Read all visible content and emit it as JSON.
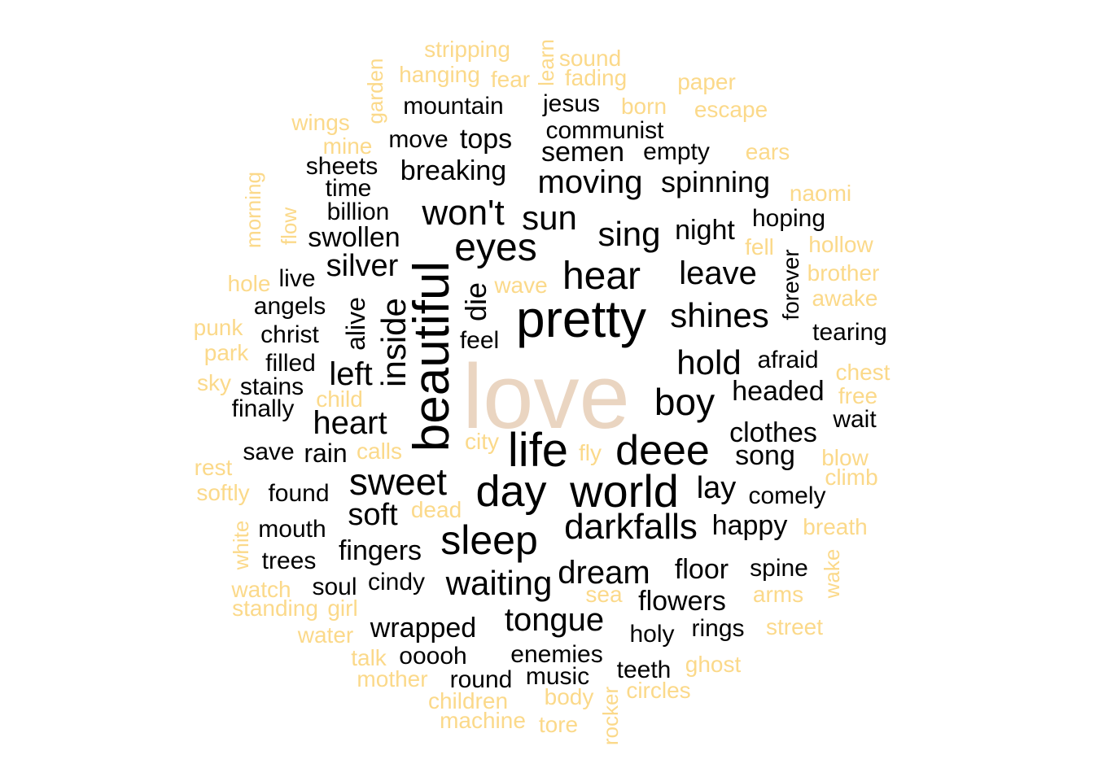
{
  "colors": {
    "hero": "#ead5c1",
    "dark": "#000000",
    "light": "#fbd98a"
  },
  "words": [
    {
      "t": "love",
      "c": "hero"
    },
    {
      "t": "pretty",
      "c": "dark"
    },
    {
      "t": "beautiful",
      "c": "dark"
    },
    {
      "t": "life",
      "c": "dark"
    },
    {
      "t": "world",
      "c": "dark"
    },
    {
      "t": "day",
      "c": "dark"
    },
    {
      "t": "deee",
      "c": "dark"
    },
    {
      "t": "sleep",
      "c": "dark"
    },
    {
      "t": "hear",
      "c": "dark"
    },
    {
      "t": "eyes",
      "c": "dark"
    },
    {
      "t": "boy",
      "c": "dark"
    },
    {
      "t": "sweet",
      "c": "dark"
    },
    {
      "t": "darkfalls",
      "c": "dark"
    },
    {
      "t": "won't",
      "c": "dark"
    },
    {
      "t": "inside",
      "c": "dark"
    },
    {
      "t": "shines",
      "c": "dark"
    },
    {
      "t": "sun",
      "c": "dark"
    },
    {
      "t": "sing",
      "c": "dark"
    },
    {
      "t": "hold",
      "c": "dark"
    },
    {
      "t": "waiting",
      "c": "dark"
    },
    {
      "t": "moving",
      "c": "dark"
    },
    {
      "t": "leave",
      "c": "dark"
    },
    {
      "t": "heart",
      "c": "dark"
    },
    {
      "t": "silver",
      "c": "dark"
    },
    {
      "t": "left",
      "c": "dark"
    },
    {
      "t": "soft",
      "c": "dark"
    },
    {
      "t": "tongue",
      "c": "dark"
    },
    {
      "t": "dream",
      "c": "dark"
    },
    {
      "t": "lay",
      "c": "dark"
    },
    {
      "t": "die",
      "c": "dark"
    },
    {
      "t": "alive",
      "c": "dark"
    },
    {
      "t": "spinning",
      "c": "dark"
    },
    {
      "t": "breaking",
      "c": "dark"
    },
    {
      "t": "swollen",
      "c": "dark"
    },
    {
      "t": "night",
      "c": "dark"
    },
    {
      "t": "clothes",
      "c": "dark"
    },
    {
      "t": "headed",
      "c": "dark"
    },
    {
      "t": "fingers",
      "c": "dark"
    },
    {
      "t": "wrapped",
      "c": "dark"
    },
    {
      "t": "happy",
      "c": "dark"
    },
    {
      "t": "song",
      "c": "dark"
    },
    {
      "t": "floor",
      "c": "dark"
    },
    {
      "t": "flowers",
      "c": "dark"
    },
    {
      "t": "tops",
      "c": "dark"
    },
    {
      "t": "semen",
      "c": "dark"
    },
    {
      "t": "mountain",
      "c": "dark"
    },
    {
      "t": "rain",
      "c": "dark"
    },
    {
      "t": "forever",
      "c": "dark"
    },
    {
      "t": "hoping",
      "c": "dark"
    },
    {
      "t": "afraid",
      "c": "dark"
    },
    {
      "t": "tearing",
      "c": "dark"
    },
    {
      "t": "comely",
      "c": "dark"
    },
    {
      "t": "spine",
      "c": "dark"
    },
    {
      "t": "enemies",
      "c": "dark"
    },
    {
      "t": "communist",
      "c": "dark"
    },
    {
      "t": "jesus",
      "c": "dark"
    },
    {
      "t": "empty",
      "c": "dark"
    },
    {
      "t": "move",
      "c": "dark"
    },
    {
      "t": "sheets",
      "c": "dark"
    },
    {
      "t": "time",
      "c": "dark"
    },
    {
      "t": "billion",
      "c": "dark"
    },
    {
      "t": "angels",
      "c": "dark"
    },
    {
      "t": "christ",
      "c": "dark"
    },
    {
      "t": "filled",
      "c": "dark"
    },
    {
      "t": "stains",
      "c": "dark"
    },
    {
      "t": "finally",
      "c": "dark"
    },
    {
      "t": "save",
      "c": "dark"
    },
    {
      "t": "found",
      "c": "dark"
    },
    {
      "t": "mouth",
      "c": "dark"
    },
    {
      "t": "trees",
      "c": "dark"
    },
    {
      "t": "soul",
      "c": "dark"
    },
    {
      "t": "cindy",
      "c": "dark"
    },
    {
      "t": "ooooh",
      "c": "dark"
    },
    {
      "t": "round",
      "c": "dark"
    },
    {
      "t": "music",
      "c": "dark"
    },
    {
      "t": "teeth",
      "c": "dark"
    },
    {
      "t": "holy",
      "c": "dark"
    },
    {
      "t": "rings",
      "c": "dark"
    },
    {
      "t": "wait",
      "c": "dark"
    },
    {
      "t": "feel",
      "c": "dark"
    },
    {
      "t": "live",
      "c": "dark"
    },
    {
      "t": "stripping",
      "c": "light"
    },
    {
      "t": "learn",
      "c": "light"
    },
    {
      "t": "sound",
      "c": "light"
    },
    {
      "t": "hanging",
      "c": "light"
    },
    {
      "t": "fear",
      "c": "light"
    },
    {
      "t": "fading",
      "c": "light"
    },
    {
      "t": "paper",
      "c": "light"
    },
    {
      "t": "garden",
      "c": "light"
    },
    {
      "t": "born",
      "c": "light"
    },
    {
      "t": "escape",
      "c": "light"
    },
    {
      "t": "wings",
      "c": "light"
    },
    {
      "t": "mine",
      "c": "light"
    },
    {
      "t": "ears",
      "c": "light"
    },
    {
      "t": "morning",
      "c": "light"
    },
    {
      "t": "naomi",
      "c": "light"
    },
    {
      "t": "flow",
      "c": "light"
    },
    {
      "t": "fell",
      "c": "light"
    },
    {
      "t": "hollow",
      "c": "light"
    },
    {
      "t": "brother",
      "c": "light"
    },
    {
      "t": "hole",
      "c": "light"
    },
    {
      "t": "wave",
      "c": "light"
    },
    {
      "t": "awake",
      "c": "light"
    },
    {
      "t": "punk",
      "c": "light"
    },
    {
      "t": "park",
      "c": "light"
    },
    {
      "t": "chest",
      "c": "light"
    },
    {
      "t": "sky",
      "c": "light"
    },
    {
      "t": "free",
      "c": "light"
    },
    {
      "t": "child",
      "c": "light"
    },
    {
      "t": "calls",
      "c": "light"
    },
    {
      "t": "city",
      "c": "light"
    },
    {
      "t": "fly",
      "c": "light"
    },
    {
      "t": "blow",
      "c": "light"
    },
    {
      "t": "rest",
      "c": "light"
    },
    {
      "t": "climb",
      "c": "light"
    },
    {
      "t": "softly",
      "c": "light"
    },
    {
      "t": "dead",
      "c": "light"
    },
    {
      "t": "breath",
      "c": "light"
    },
    {
      "t": "white",
      "c": "light"
    },
    {
      "t": "wake",
      "c": "light"
    },
    {
      "t": "watch",
      "c": "light"
    },
    {
      "t": "arms",
      "c": "light"
    },
    {
      "t": "sea",
      "c": "light"
    },
    {
      "t": "standing",
      "c": "light"
    },
    {
      "t": "girl",
      "c": "light"
    },
    {
      "t": "street",
      "c": "light"
    },
    {
      "t": "water",
      "c": "light"
    },
    {
      "t": "talk",
      "c": "light"
    },
    {
      "t": "ghost",
      "c": "light"
    },
    {
      "t": "mother",
      "c": "light"
    },
    {
      "t": "circles",
      "c": "light"
    },
    {
      "t": "children",
      "c": "light"
    },
    {
      "t": "body",
      "c": "light"
    },
    {
      "t": "rocker",
      "c": "light"
    },
    {
      "t": "machine",
      "c": "light"
    },
    {
      "t": "tore",
      "c": "light"
    }
  ]
}
